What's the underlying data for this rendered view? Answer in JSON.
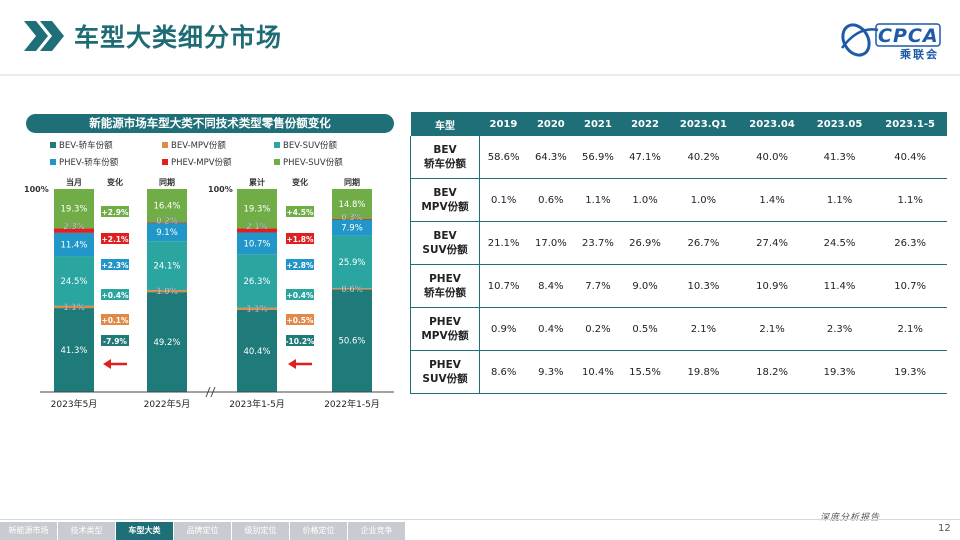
{
  "page": {
    "title": "车型大类细分市场",
    "logo_text": "CPCA",
    "logo_cn": "乘联会",
    "report_label": "深度分析报告",
    "page_number": "12"
  },
  "nav": {
    "items": [
      "新能源市场",
      "技术类型",
      "车型大类",
      "品牌定位",
      "级别定位",
      "价格定位",
      "企业竞争"
    ],
    "active": 2
  },
  "colors": {
    "teal": "#1e6f77",
    "bev_car": "#1f7a7a",
    "bev_mpv": "#e08a4a",
    "bev_suv": "#2aa5a0",
    "phev_car": "#2196c8",
    "phev_mpv": "#e02020",
    "phev_suv": "#70ad47"
  },
  "chart_data": {
    "type": "bar",
    "title": "新能源市场车型大类不同技术类型零售份额变化",
    "ylabel_top": "100%",
    "series": [
      {
        "name": "BEV-轿车份额",
        "color": "#1f7a7a",
        "values": [
          41.3,
          49.2,
          40.4,
          50.6
        ],
        "changes": [
          "-7.9%",
          "-10.2%"
        ]
      },
      {
        "name": "BEV-MPV份额",
        "color": "#e08a4a",
        "values": [
          1.1,
          1.0,
          1.1,
          0.6
        ],
        "changes": [
          "+0.1%",
          "+0.5%"
        ]
      },
      {
        "name": "BEV-SUV份额",
        "color": "#2aa5a0",
        "values": [
          24.5,
          24.1,
          26.3,
          25.9
        ],
        "changes": [
          "+0.4%",
          "+0.4%"
        ]
      },
      {
        "name": "PHEV-轿车份额",
        "color": "#2196c8",
        "values": [
          11.4,
          9.1,
          10.7,
          7.9
        ],
        "changes": [
          "+2.3%",
          "+2.8%"
        ]
      },
      {
        "name": "PHEV-MPV份额",
        "color": "#e02020",
        "values": [
          2.3,
          0.2,
          2.1,
          0.3
        ],
        "changes": [
          "+2.1%",
          "+1.8%"
        ]
      },
      {
        "name": "PHEV-SUV份额",
        "color": "#70ad47",
        "values": [
          19.3,
          16.4,
          19.3,
          14.8
        ],
        "changes": [
          "+2.9%",
          "+4.5%"
        ]
      }
    ],
    "categories": [
      "2023年5月",
      "2022年5月",
      "2023年1-5月",
      "2022年1-5月"
    ],
    "column_headers": [
      "当月",
      "变化",
      "同期",
      "累计",
      "变化",
      "同期"
    ],
    "stacked": true
  },
  "table": {
    "headers": [
      "车型",
      "2019",
      "2020",
      "2021",
      "2022",
      "2023.Q1",
      "2023.04",
      "2023.05",
      "2023.1-5"
    ],
    "rows": [
      {
        "label1": "BEV",
        "label2": "轿车份额",
        "values": [
          "58.6%",
          "64.3%",
          "56.9%",
          "47.1%",
          "40.2%",
          "40.0%",
          "41.3%",
          "40.4%"
        ]
      },
      {
        "label1": "BEV",
        "label2": "MPV份额",
        "values": [
          "0.1%",
          "0.6%",
          "1.1%",
          "1.0%",
          "1.0%",
          "1.4%",
          "1.1%",
          "1.1%"
        ]
      },
      {
        "label1": "BEV",
        "label2": "SUV份额",
        "values": [
          "21.1%",
          "17.0%",
          "23.7%",
          "26.9%",
          "26.7%",
          "27.4%",
          "24.5%",
          "26.3%"
        ]
      },
      {
        "label1": "PHEV",
        "label2": "轿车份额",
        "values": [
          "10.7%",
          "8.4%",
          "7.7%",
          "9.0%",
          "10.3%",
          "10.9%",
          "11.4%",
          "10.7%"
        ]
      },
      {
        "label1": "PHEV",
        "label2": "MPV份额",
        "values": [
          "0.9%",
          "0.4%",
          "0.2%",
          "0.5%",
          "2.1%",
          "2.1%",
          "2.3%",
          "2.1%"
        ]
      },
      {
        "label1": "PHEV",
        "label2": "SUV份额",
        "values": [
          "8.6%",
          "9.3%",
          "10.4%",
          "15.5%",
          "19.8%",
          "18.2%",
          "19.3%",
          "19.3%"
        ]
      }
    ]
  }
}
